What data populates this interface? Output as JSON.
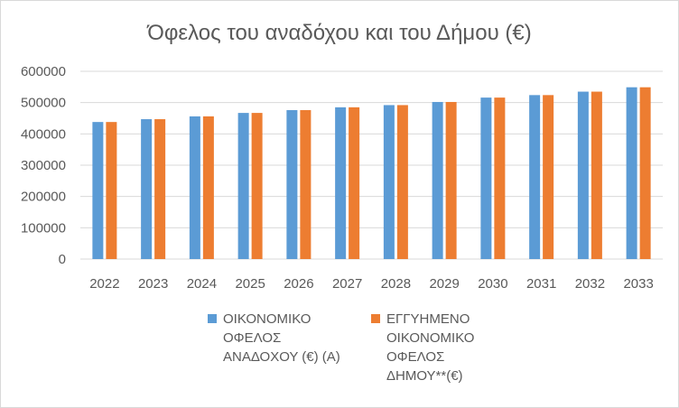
{
  "chart_data": {
    "type": "bar",
    "title": "Όφελος του αναδόχου και του Δήμου (€)",
    "xlabel": "",
    "ylabel": "",
    "categories": [
      "2022",
      "2023",
      "2024",
      "2025",
      "2026",
      "2027",
      "2028",
      "2029",
      "2030",
      "2031",
      "2032",
      "2033"
    ],
    "ylim": [
      0,
      600000
    ],
    "yticks": [
      "0",
      "100000",
      "200000",
      "300000",
      "400000",
      "500000",
      "600000"
    ],
    "grid": true,
    "legend_position": "bottom",
    "series": [
      {
        "name": "ΟΙΚΟΝΟΜΙΚΟ ΟΦΕΛΟΣ ΑΝΑΔΟΧΟΥ (€) (Α)",
        "name_lines": [
          "ΟΙΚΟΝΟΜΙΚΟ",
          "ΟΦΕΛΟΣ",
          "ΑΝΑΔΟΧΟΥ (€) (Α)"
        ],
        "color": "#5b9bd5",
        "values": [
          438000,
          447000,
          456000,
          467000,
          476000,
          485000,
          492000,
          502000,
          516000,
          524000,
          535000,
          549000
        ]
      },
      {
        "name": "ΕΓΓΥΗΜΕΝΟ ΟΙΚΟΝΟΜΙΚΟ ΟΦΕΛΟΣ ΔΗΜΟΥ**(€)",
        "name_lines": [
          "ΕΓΓΥΗΜΕΝΟ",
          "ΟΙΚΟΝΟΜΙΚΟ",
          "ΟΦΕΛΟΣ",
          "ΔΗΜΟΥ**(€)"
        ],
        "color": "#ed7d31",
        "values": [
          438000,
          447000,
          456000,
          467000,
          476000,
          485000,
          492000,
          502000,
          516000,
          524000,
          535000,
          549000
        ]
      }
    ]
  }
}
